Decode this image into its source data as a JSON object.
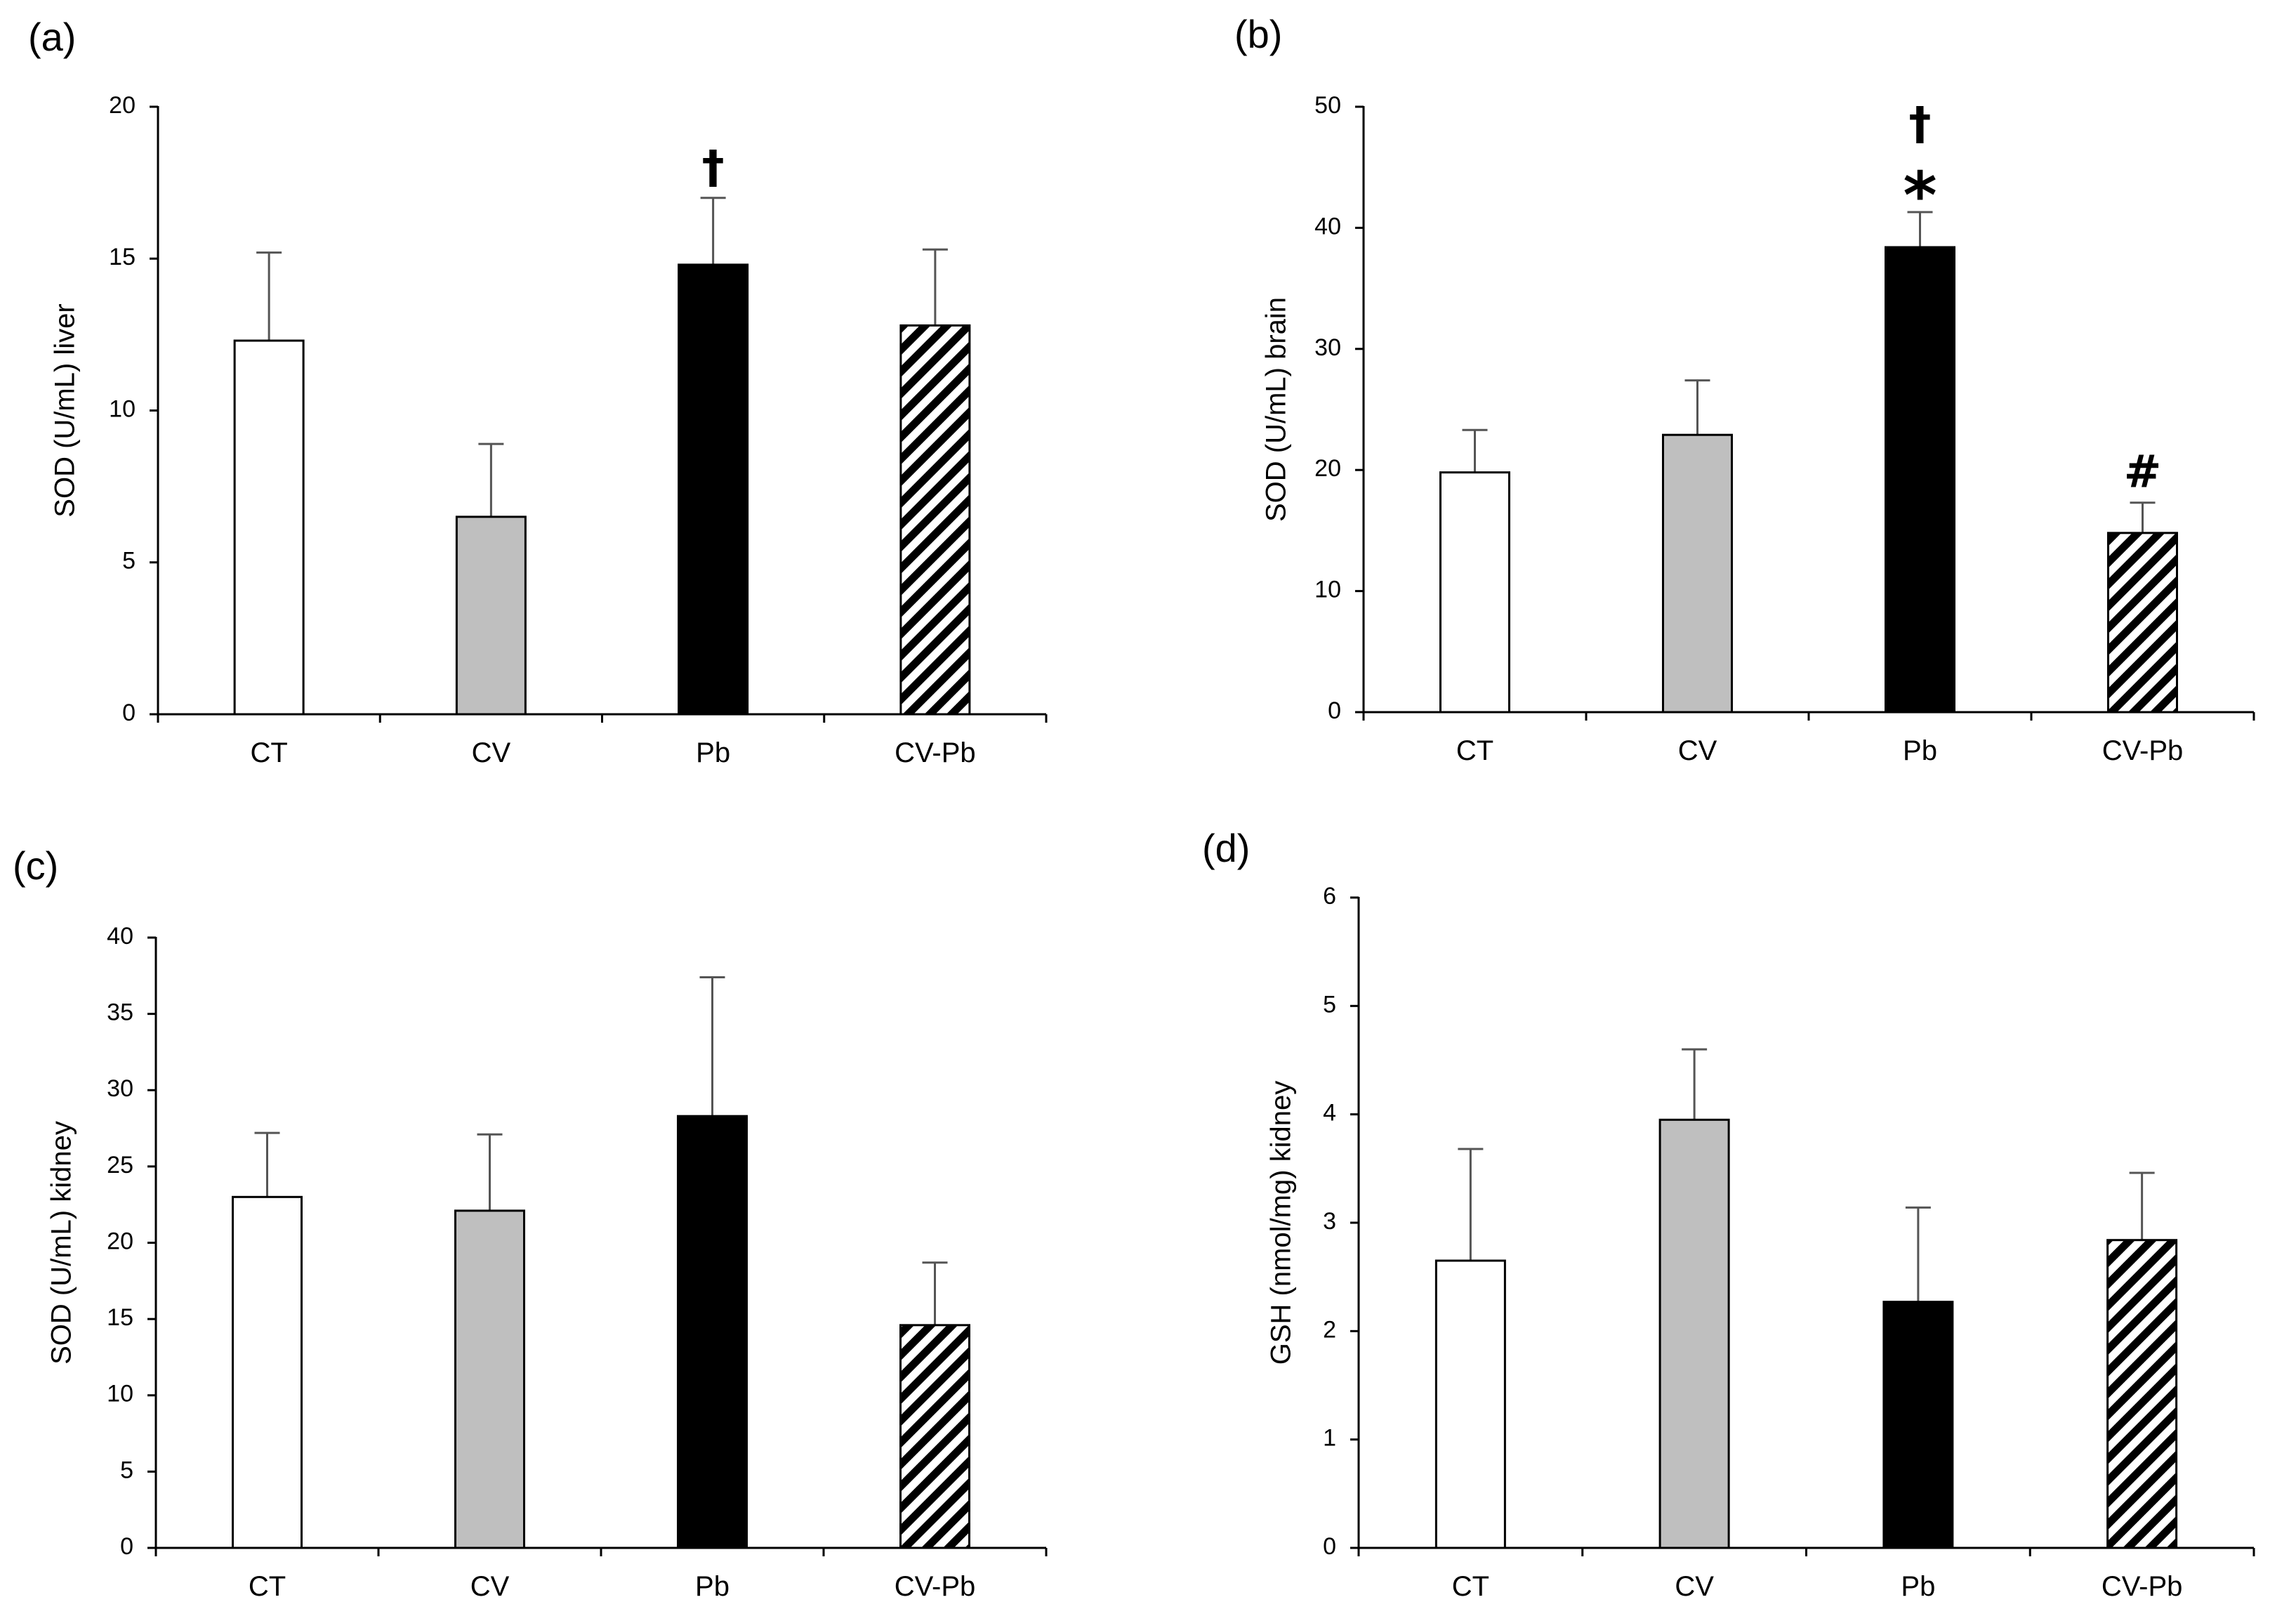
{
  "chart_data": [
    {
      "id": "a",
      "panel_label": "(a)",
      "type": "bar",
      "ylabel": "SOD (U/mL) liver",
      "ylim": [
        0,
        20
      ],
      "yticks": [
        0,
        5,
        10,
        15,
        20
      ],
      "categories": [
        "CT",
        "CV",
        "Pb",
        "CV-Pb"
      ],
      "values": [
        12.3,
        6.5,
        14.8,
        12.8
      ],
      "errors": [
        2.9,
        2.4,
        2.2,
        2.5
      ],
      "annotations": [
        {
          "category": "Pb",
          "text": "†"
        }
      ]
    },
    {
      "id": "b",
      "panel_label": "(b)",
      "type": "bar",
      "ylabel": "SOD (U/mL) brain",
      "ylim": [
        0,
        50
      ],
      "yticks": [
        0,
        10,
        20,
        30,
        40,
        50
      ],
      "categories": [
        "CT",
        "CV",
        "Pb",
        "CV-Pb"
      ],
      "values": [
        19.8,
        22.9,
        38.4,
        14.8
      ],
      "errors": [
        3.5,
        4.5,
        2.9,
        2.5
      ],
      "annotations": [
        {
          "category": "Pb",
          "text": "†"
        },
        {
          "category": "Pb",
          "text": "*"
        },
        {
          "category": "CV-Pb",
          "text": "#"
        }
      ]
    },
    {
      "id": "c",
      "panel_label": "(c)",
      "type": "bar",
      "ylabel": "SOD (U/mL) kidney",
      "ylim": [
        0,
        40
      ],
      "yticks": [
        0,
        5,
        10,
        15,
        20,
        25,
        30,
        35,
        40
      ],
      "categories": [
        "CT",
        "CV",
        "Pb",
        "CV-Pb"
      ],
      "values": [
        23.0,
        22.1,
        28.3,
        14.6
      ],
      "errors": [
        4.2,
        5.0,
        9.1,
        4.1
      ],
      "annotations": []
    },
    {
      "id": "d",
      "panel_label": "(d)",
      "type": "bar",
      "ylabel": "GSH (nmol/mg) kidney",
      "ylim": [
        0,
        6
      ],
      "yticks": [
        0,
        1,
        2,
        3,
        4,
        5,
        6
      ],
      "categories": [
        "CT",
        "CV",
        "Pb",
        "CV-Pb"
      ],
      "values": [
        2.65,
        3.95,
        2.27,
        2.84
      ],
      "errors": [
        1.03,
        0.65,
        0.87,
        0.62
      ],
      "annotations": []
    }
  ],
  "bar_styles": {
    "CT": {
      "fill": "#ffffff"
    },
    "CV": {
      "fill": "#bfbfbf"
    },
    "Pb": {
      "fill": "#000000"
    },
    "CV-Pb": {
      "fill": "hatch"
    }
  }
}
